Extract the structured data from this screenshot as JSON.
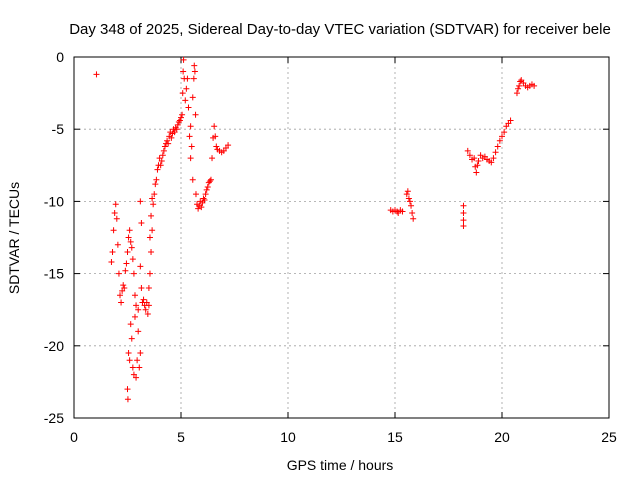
{
  "chart_data": {
    "type": "scatter",
    "title": "Day 348 of 2025, Sidereal Day-to-day VTEC variation (SDTVAR) for receiver bele",
    "xlabel": "GPS time / hours",
    "ylabel": "SDTVAR / TECUs",
    "xlim": [
      0,
      25
    ],
    "ylim": [
      -25,
      0
    ],
    "xticks": [
      0,
      5,
      10,
      15,
      20,
      25
    ],
    "yticks": [
      0,
      -5,
      -10,
      -15,
      -20,
      -25
    ],
    "xtick_labels": [
      "0",
      "5",
      "10",
      "15",
      "20",
      "25"
    ],
    "ytick_labels": [
      "0",
      "-5",
      "-10",
      "-15",
      "-20",
      "-25"
    ],
    "grid": true,
    "marker": "+",
    "marker_color": "#ff0000",
    "series": [
      {
        "name": "SDTVAR",
        "points": [
          [
            1.05,
            -1.2
          ],
          [
            1.75,
            -14.2
          ],
          [
            1.8,
            -13.5
          ],
          [
            1.85,
            -12.0
          ],
          [
            1.9,
            -10.8
          ],
          [
            1.95,
            -10.2
          ],
          [
            2.0,
            -11.2
          ],
          [
            2.05,
            -13.0
          ],
          [
            2.1,
            -15.0
          ],
          [
            2.15,
            -16.5
          ],
          [
            2.2,
            -17.0
          ],
          [
            2.25,
            -16.2
          ],
          [
            2.3,
            -15.8
          ],
          [
            2.35,
            -16.0
          ],
          [
            2.4,
            -14.8
          ],
          [
            2.45,
            -14.3
          ],
          [
            2.5,
            -13.5
          ],
          [
            2.5,
            -23.0
          ],
          [
            2.52,
            -23.7
          ],
          [
            2.55,
            -20.5
          ],
          [
            2.55,
            -12.5
          ],
          [
            2.6,
            -12.0
          ],
          [
            2.6,
            -21.0
          ],
          [
            2.65,
            -18.5
          ],
          [
            2.65,
            -12.8
          ],
          [
            2.7,
            -19.5
          ],
          [
            2.7,
            -13.2
          ],
          [
            2.75,
            -21.5
          ],
          [
            2.75,
            -14.0
          ],
          [
            2.8,
            -22.0
          ],
          [
            2.8,
            -15.0
          ],
          [
            2.85,
            -18.0
          ],
          [
            2.85,
            -16.5
          ],
          [
            2.9,
            -22.2
          ],
          [
            2.9,
            -17.2
          ],
          [
            2.95,
            -21.0
          ],
          [
            3.0,
            -19.0
          ],
          [
            3.0,
            -17.5
          ],
          [
            3.05,
            -21.5
          ],
          [
            3.1,
            -20.5
          ],
          [
            3.1,
            -14.5
          ],
          [
            3.1,
            -10.0
          ],
          [
            3.15,
            -11.5
          ],
          [
            3.15,
            -16.0
          ],
          [
            3.2,
            -17.0
          ],
          [
            3.25,
            -16.8
          ],
          [
            3.3,
            -17.2
          ],
          [
            3.35,
            -17.5
          ],
          [
            3.4,
            -17.0
          ],
          [
            3.45,
            -17.8
          ],
          [
            3.5,
            -17.2
          ],
          [
            3.5,
            -16.0
          ],
          [
            3.55,
            -15.0
          ],
          [
            3.55,
            -12.5
          ],
          [
            3.6,
            -13.5
          ],
          [
            3.6,
            -11.0
          ],
          [
            3.65,
            -12.0
          ],
          [
            3.65,
            -9.8
          ],
          [
            3.7,
            -10.2
          ],
          [
            3.75,
            -9.5
          ],
          [
            3.8,
            -8.8
          ],
          [
            3.85,
            -8.5
          ],
          [
            3.9,
            -7.8
          ],
          [
            3.95,
            -7.5
          ],
          [
            4.0,
            -7.0
          ],
          [
            4.05,
            -7.5
          ],
          [
            4.1,
            -7.2
          ],
          [
            4.15,
            -6.8
          ],
          [
            4.2,
            -6.5
          ],
          [
            4.25,
            -6.2
          ],
          [
            4.3,
            -6.0
          ],
          [
            4.35,
            -5.8
          ],
          [
            4.4,
            -6.0
          ],
          [
            4.45,
            -5.5
          ],
          [
            4.5,
            -5.2
          ],
          [
            4.55,
            -5.6
          ],
          [
            4.6,
            -5.3
          ],
          [
            4.65,
            -5.0
          ],
          [
            4.7,
            -5.2
          ],
          [
            4.75,
            -4.9
          ],
          [
            4.8,
            -5.0
          ],
          [
            4.85,
            -4.7
          ],
          [
            4.9,
            -4.5
          ],
          [
            4.95,
            -4.4
          ],
          [
            5.0,
            -4.2
          ],
          [
            5.05,
            -4.0
          ],
          [
            5.08,
            -2.5
          ],
          [
            5.1,
            -1.0
          ],
          [
            5.12,
            -0.2
          ],
          [
            5.15,
            -1.5
          ],
          [
            5.2,
            -3.0
          ],
          [
            5.25,
            -2.2
          ],
          [
            5.3,
            -1.5
          ],
          [
            5.35,
            -3.5
          ],
          [
            5.4,
            -5.5
          ],
          [
            5.45,
            -4.8
          ],
          [
            5.45,
            -7.0
          ],
          [
            5.5,
            -6.2
          ],
          [
            5.55,
            -8.5
          ],
          [
            5.55,
            -2.8
          ],
          [
            5.6,
            -1.5
          ],
          [
            5.62,
            -0.6
          ],
          [
            5.65,
            -1.0
          ],
          [
            5.68,
            -4.0
          ],
          [
            5.7,
            -9.5
          ],
          [
            5.75,
            -10.2
          ],
          [
            5.8,
            -10.5
          ],
          [
            5.85,
            -10.3
          ],
          [
            5.9,
            -10.0
          ],
          [
            5.95,
            -10.4
          ],
          [
            6.0,
            -10.1
          ],
          [
            6.05,
            -9.8
          ],
          [
            6.1,
            -9.9
          ],
          [
            6.15,
            -9.5
          ],
          [
            6.2,
            -9.2
          ],
          [
            6.25,
            -9.0
          ],
          [
            6.3,
            -8.7
          ],
          [
            6.35,
            -8.6
          ],
          [
            6.4,
            -8.5
          ],
          [
            6.45,
            -7.0
          ],
          [
            6.5,
            -5.6
          ],
          [
            6.55,
            -4.8
          ],
          [
            6.6,
            -5.5
          ],
          [
            6.65,
            -6.2
          ],
          [
            6.7,
            -6.4
          ],
          [
            6.8,
            -6.5
          ],
          [
            6.9,
            -6.6
          ],
          [
            7.0,
            -6.5
          ],
          [
            7.1,
            -6.3
          ],
          [
            7.2,
            -6.1
          ],
          [
            14.8,
            -10.6
          ],
          [
            14.9,
            -10.7
          ],
          [
            15.0,
            -10.6
          ],
          [
            15.1,
            -10.7
          ],
          [
            15.15,
            -10.8
          ],
          [
            15.25,
            -10.6
          ],
          [
            15.35,
            -10.7
          ],
          [
            15.55,
            -9.5
          ],
          [
            15.6,
            -9.3
          ],
          [
            15.65,
            -9.8
          ],
          [
            15.7,
            -10.0
          ],
          [
            15.75,
            -10.3
          ],
          [
            15.8,
            -10.8
          ],
          [
            15.85,
            -11.2
          ],
          [
            18.2,
            -10.3
          ],
          [
            18.2,
            -10.8
          ],
          [
            18.2,
            -11.3
          ],
          [
            18.2,
            -11.7
          ],
          [
            18.4,
            -6.5
          ],
          [
            18.5,
            -6.8
          ],
          [
            18.6,
            -7.1
          ],
          [
            18.7,
            -7.0
          ],
          [
            18.75,
            -7.6
          ],
          [
            18.8,
            -8.0
          ],
          [
            18.85,
            -7.5
          ],
          [
            18.9,
            -7.2
          ],
          [
            19.0,
            -6.8
          ],
          [
            19.1,
            -7.0
          ],
          [
            19.2,
            -6.9
          ],
          [
            19.3,
            -7.1
          ],
          [
            19.4,
            -7.2
          ],
          [
            19.5,
            -7.3
          ],
          [
            19.6,
            -7.0
          ],
          [
            19.7,
            -6.6
          ],
          [
            19.8,
            -6.2
          ],
          [
            19.9,
            -5.8
          ],
          [
            20.0,
            -5.5
          ],
          [
            20.1,
            -5.2
          ],
          [
            20.2,
            -4.8
          ],
          [
            20.3,
            -4.6
          ],
          [
            20.4,
            -4.4
          ],
          [
            20.7,
            -2.5
          ],
          [
            20.75,
            -2.2
          ],
          [
            20.8,
            -2.0
          ],
          [
            20.85,
            -1.7
          ],
          [
            20.9,
            -1.6
          ],
          [
            21.0,
            -1.8
          ],
          [
            21.1,
            -2.0
          ],
          [
            21.2,
            -2.1
          ],
          [
            21.3,
            -2.0
          ],
          [
            21.4,
            -1.9
          ],
          [
            21.5,
            -2.0
          ]
        ]
      }
    ]
  }
}
